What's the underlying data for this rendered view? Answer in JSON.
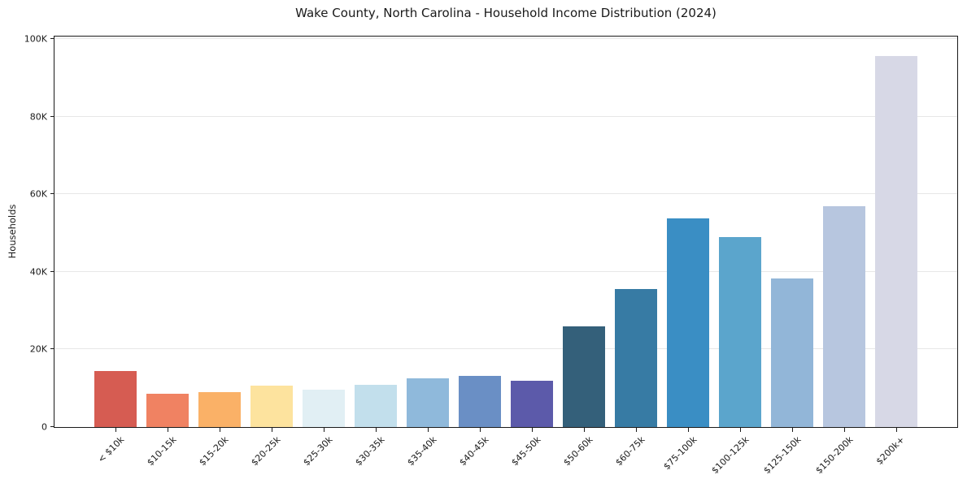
{
  "title": "Wake County, North Carolina - Household Income Distribution (2024)",
  "chart_data": {
    "type": "bar",
    "title": "Wake County, North Carolina - Household Income Distribution (2024)",
    "xlabel": "",
    "ylabel": "Households",
    "categories": [
      "< $10k",
      "$10-15k",
      "$15-20k",
      "$20-25k",
      "$25-30k",
      "$30-35k",
      "$35-40k",
      "$40-45k",
      "$45-50k",
      "$50-60k",
      "$60-75k",
      "$75-100k",
      "$100-125k",
      "$125-150k",
      "$150-200k",
      "$200k+"
    ],
    "values": [
      14500,
      8500,
      9000,
      10600,
      9700,
      10800,
      12600,
      13100,
      12000,
      26000,
      35500,
      53800,
      49000,
      38200,
      56900,
      95600
    ],
    "bar_colors": [
      "#d65c52",
      "#f08262",
      "#fab167",
      "#fde39e",
      "#e1eff4",
      "#c2dfec",
      "#8fb9db",
      "#6a8fc5",
      "#5c5aaa",
      "#34607a",
      "#377ba4",
      "#3a8ec4",
      "#5ba5cc",
      "#92b6d8",
      "#b7c6df",
      "#d7d8e6"
    ],
    "ylim": [
      0,
      100625
    ],
    "yticks": [
      {
        "value": 0,
        "label": "0"
      },
      {
        "value": 20000,
        "label": "20K"
      },
      {
        "value": 40000,
        "label": "40K"
      },
      {
        "value": 60000,
        "label": "60K"
      },
      {
        "value": 80000,
        "label": "80K"
      },
      {
        "value": 100000,
        "label": "100K"
      }
    ],
    "grid": "horizontal",
    "legend": "none"
  },
  "style": {
    "background": "#ffffff",
    "text_color": "#1a1a1a",
    "grid_color": "#e7e7e7",
    "spine_color": "#1a1a1a"
  }
}
